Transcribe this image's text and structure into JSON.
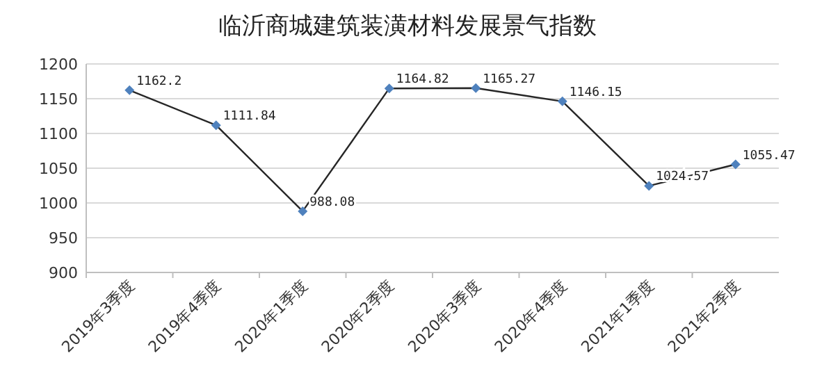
{
  "chart_data": {
    "type": "line",
    "title": "临沂商城建筑装潢材料发展景气指数",
    "categories": [
      "2019年3季度",
      "2019年4季度",
      "2020年1季度",
      "2020年2季度",
      "2020年3季度",
      "2020年4季度",
      "2021年1季度",
      "2021年2季度"
    ],
    "series": [
      {
        "color": "#4f81bd",
        "values": [
          1162.2,
          1111.84,
          988.08,
          1164.82,
          1165.27,
          1146.15,
          1024.57,
          1055.47
        ]
      }
    ],
    "ylim": [
      900,
      1200
    ],
    "yticks": [
      900,
      950,
      1000,
      1050,
      1100,
      1150,
      1200
    ],
    "grid": "y",
    "marker": "diamond",
    "data_labels": true
  }
}
